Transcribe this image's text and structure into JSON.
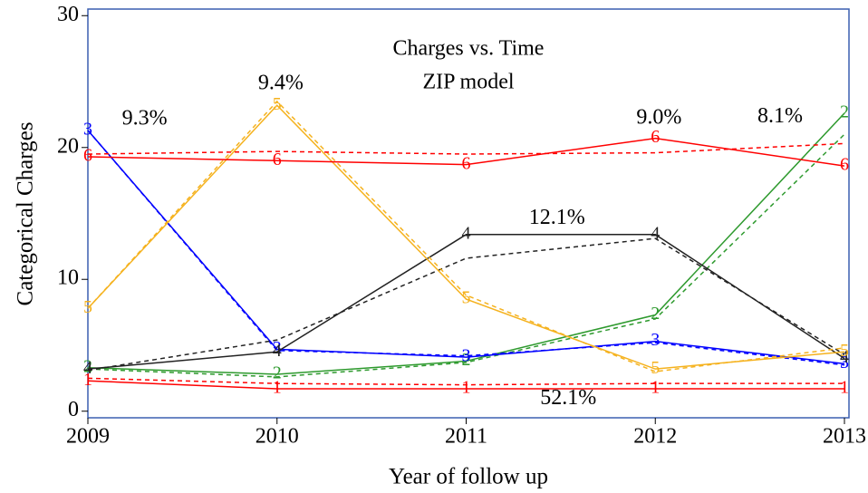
{
  "chart_data": {
    "type": "line",
    "title": "Charges vs. Time",
    "subtitle": "ZIP model",
    "x_label": "Year of follow up",
    "y_label": "Categorical Charges",
    "x": [
      2009,
      2010,
      2011,
      2012,
      2013
    ],
    "xlim": [
      2009,
      2013
    ],
    "xticks": [
      2009,
      2010,
      2011,
      2012,
      2013
    ],
    "ylim": [
      -0.5,
      30.5
    ],
    "yticks": [
      0,
      10,
      20,
      30
    ],
    "series": [
      {
        "name": "1",
        "color": "#ff0000",
        "values": [
          2.3,
          1.7,
          1.7,
          1.7,
          1.7
        ],
        "predicted": [
          2.5,
          2.1,
          2.0,
          2.1,
          2.1
        ]
      },
      {
        "name": "2",
        "color": "#2e9a2e",
        "values": [
          3.3,
          2.8,
          3.8,
          7.3,
          22.6
        ],
        "predicted": [
          3.2,
          2.6,
          3.7,
          7.0,
          21.0
        ]
      },
      {
        "name": "3",
        "color": "#0000ff",
        "values": [
          21.3,
          4.7,
          4.1,
          5.3,
          3.6
        ],
        "predicted": [
          21.3,
          4.6,
          4.2,
          5.2,
          3.5
        ]
      },
      {
        "name": "4",
        "color": "#222222",
        "values": [
          3.2,
          4.5,
          13.4,
          13.4,
          4.0
        ],
        "predicted": [
          3.1,
          5.4,
          11.6,
          13.1,
          4.3
        ]
      },
      {
        "name": "5",
        "color": "#f5b21e",
        "values": [
          7.8,
          23.2,
          8.5,
          3.2,
          4.5
        ],
        "predicted": [
          7.8,
          23.5,
          8.8,
          3.0,
          4.8
        ]
      },
      {
        "name": "6",
        "color": "#ff0000",
        "values": [
          19.3,
          19.0,
          18.7,
          20.7,
          18.6
        ],
        "predicted": [
          19.5,
          19.7,
          19.5,
          19.6,
          20.3
        ]
      }
    ],
    "annotations": [
      {
        "text": "9.3%",
        "x": 2009.3,
        "y": 22.1
      },
      {
        "text": "9.4%",
        "x": 2010.02,
        "y": 24.8
      },
      {
        "text": "12.1%",
        "x": 2011.48,
        "y": 14.6
      },
      {
        "text": "9.0%",
        "x": 2012.02,
        "y": 22.2
      },
      {
        "text": "8.1%",
        "x": 2012.66,
        "y": 22.3
      },
      {
        "text": "52.1%",
        "x": 2011.54,
        "y": 0.9
      }
    ]
  }
}
